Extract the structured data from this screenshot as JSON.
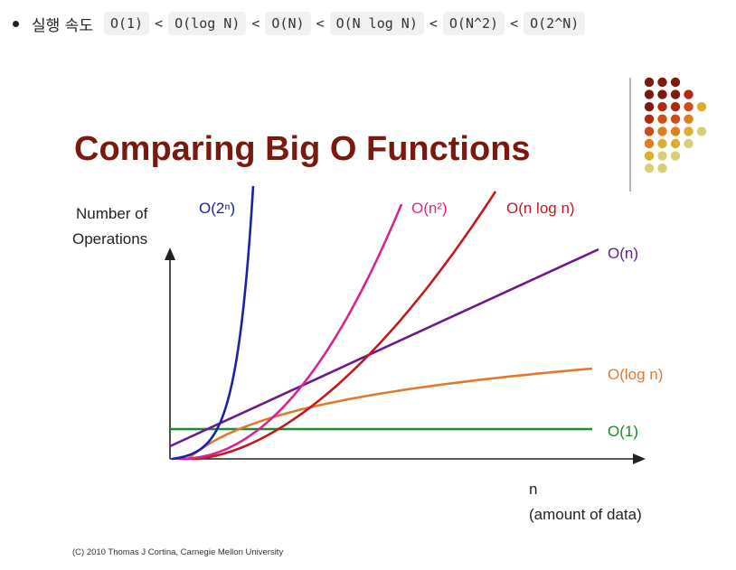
{
  "bullet": {
    "label": "실행 속도",
    "order": [
      {
        "code": "O(1)"
      },
      {
        "sep": "<"
      },
      {
        "code": "O(log N)"
      },
      {
        "sep": "<"
      },
      {
        "code": "O(N)"
      },
      {
        "sep": "<"
      },
      {
        "code": "O(N log N)"
      },
      {
        "sep": "<"
      },
      {
        "code": "O(N^2)"
      },
      {
        "sep": "<"
      },
      {
        "code": "O(2^N)"
      }
    ]
  },
  "chart_data": {
    "type": "line",
    "title": "Comparing Big O Functions",
    "ylabel": [
      "Number of",
      "Operations"
    ],
    "xlabel": [
      "n",
      "(amount of data)"
    ],
    "credit": "(C) 2010 Thomas J Cortina, Carnegie Mellon University",
    "logo_colors": [
      "#7a1a10",
      "#b02a12",
      "#d24a18",
      "#e07f1c",
      "#dcae30",
      "#d8cf78"
    ],
    "series": [
      {
        "name": "O(1)",
        "color": "#1e8a2a",
        "fn": "const"
      },
      {
        "name": "O(log n)",
        "color": "#e07a2a",
        "fn": "log"
      },
      {
        "name": "O(n)",
        "color": "#6a1a8a",
        "fn": "linear"
      },
      {
        "name": "O(n log n)",
        "color": "#c4181e",
        "fn": "nlogn"
      },
      {
        "name": "O(n²)",
        "color": "#d8258f",
        "fn": "square"
      },
      {
        "name": "O(2ⁿ)",
        "color": "#1b22a8",
        "fn": "exp"
      }
    ],
    "title_color": "#7a1a0e"
  }
}
